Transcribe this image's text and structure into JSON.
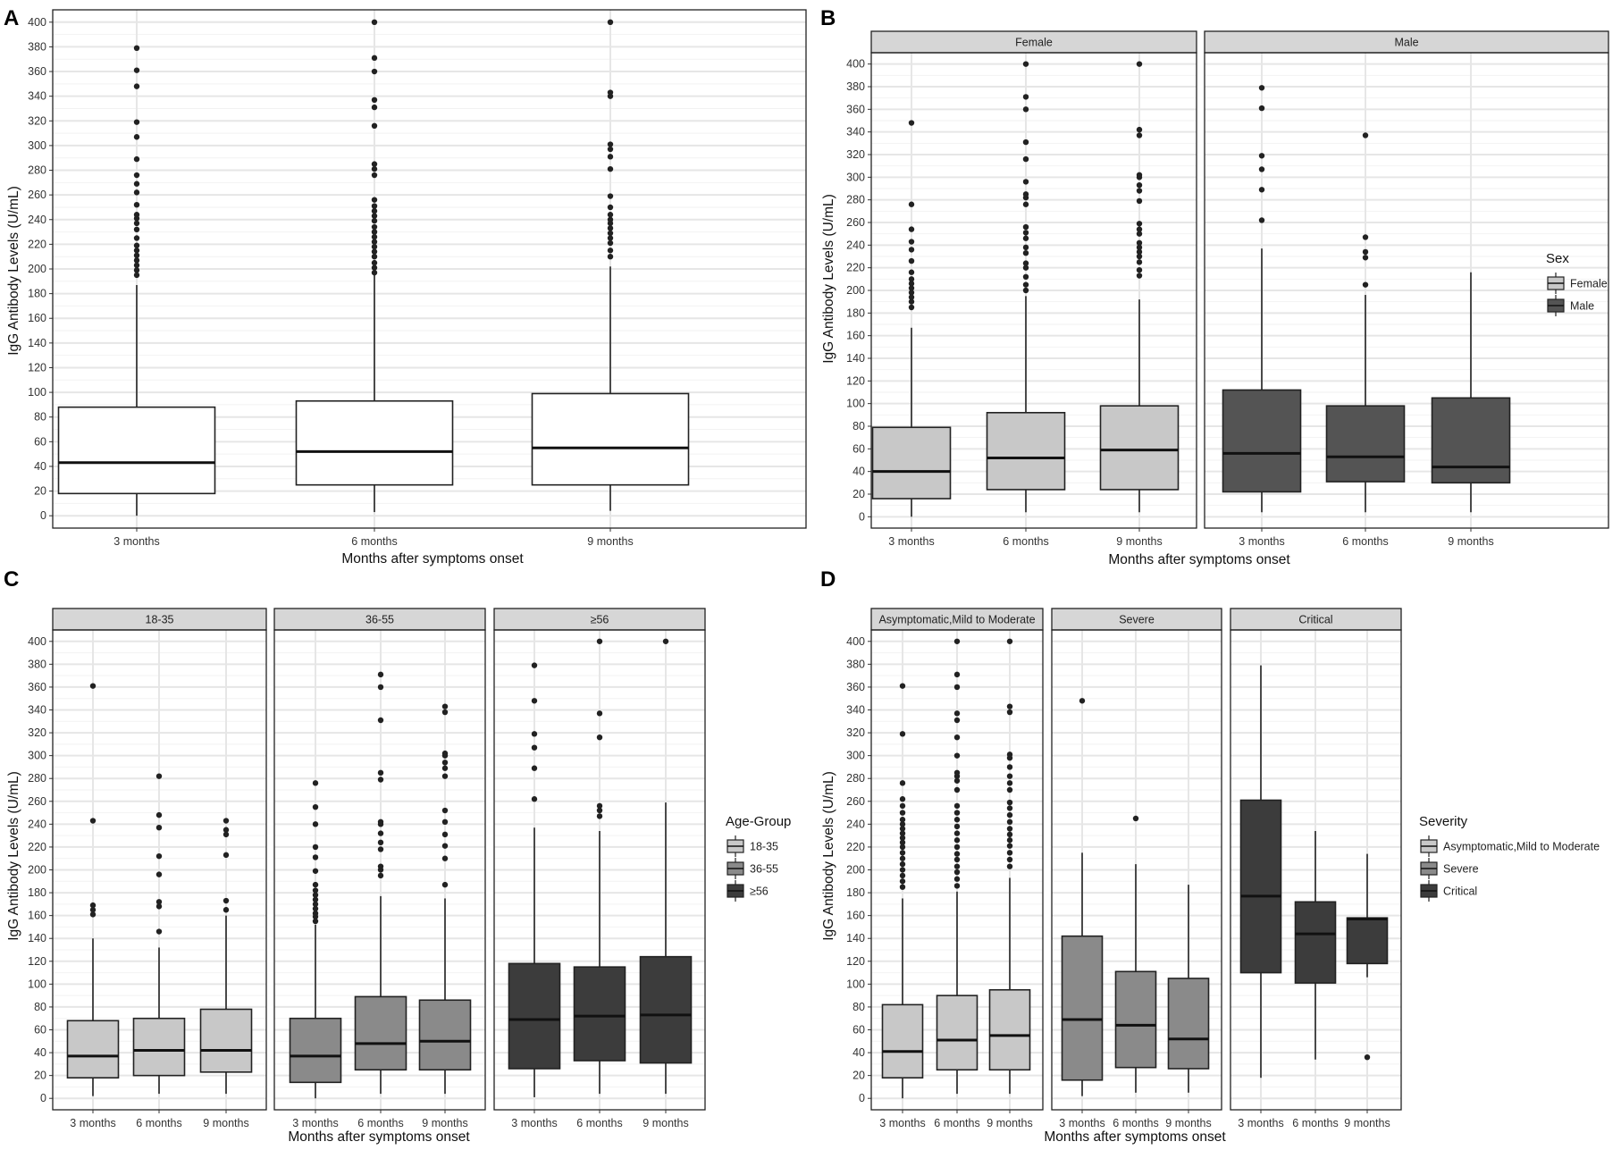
{
  "chart_data": [
    {
      "letter": "A",
      "type": "boxplot",
      "xlabel": "Months after symptoms onset",
      "ylabel": "IgG Antibody Levels (U/mL)",
      "ylim": [
        -10,
        410
      ],
      "yticks": [
        0,
        20,
        40,
        60,
        80,
        100,
        120,
        140,
        160,
        180,
        200,
        220,
        240,
        260,
        280,
        300,
        320,
        340,
        360,
        380,
        400
      ],
      "categories": [
        "3 months",
        "6 months",
        "9 months"
      ],
      "facets": [
        {
          "label": "",
          "boxes": [
            {
              "category": "3 months",
              "group": "",
              "min": 0,
              "q1": 18,
              "median": 43,
              "q3": 88,
              "max": 187,
              "outliers": [
                195,
                199,
                203,
                207,
                211,
                215,
                219,
                225,
                232,
                237,
                241,
                244,
                252,
                262,
                269,
                276,
                289,
                307,
                319,
                348,
                361,
                379
              ]
            },
            {
              "category": "6 months",
              "group": "",
              "min": 3,
              "q1": 25,
              "median": 52,
              "q3": 93,
              "max": 195,
              "outliers": [
                197,
                201,
                205,
                210,
                214,
                218,
                222,
                226,
                230,
                234,
                239,
                243,
                247,
                251,
                256,
                276,
                281,
                285,
                316,
                331,
                337,
                360,
                371,
                400
              ]
            },
            {
              "category": "9 months",
              "group": "",
              "min": 4,
              "q1": 25,
              "median": 55,
              "q3": 99,
              "max": 202,
              "outliers": [
                210,
                215,
                221,
                225,
                229,
                233,
                237,
                240,
                244,
                250,
                259,
                281,
                291,
                297,
                301,
                340,
                343,
                400
              ]
            }
          ]
        }
      ],
      "legend": null
    },
    {
      "letter": "B",
      "type": "boxplot",
      "xlabel": "Months after symptoms onset",
      "ylabel": "IgG Antibody Levels (U/mL)",
      "ylim": [
        -10,
        410
      ],
      "yticks": [
        0,
        20,
        40,
        60,
        80,
        100,
        120,
        140,
        160,
        180,
        200,
        220,
        240,
        260,
        280,
        300,
        320,
        340,
        360,
        380,
        400
      ],
      "categories": [
        "3 months",
        "6 months",
        "9 months"
      ],
      "facets": [
        {
          "label": "Female",
          "boxes": [
            {
              "category": "3 months",
              "group": "Female",
              "min": 0,
              "q1": 16,
              "median": 40,
              "q3": 79,
              "max": 167,
              "outliers": [
                185,
                190,
                194,
                198,
                202,
                206,
                210,
                216,
                226,
                236,
                243,
                254,
                276,
                348
              ]
            },
            {
              "category": "6 months",
              "group": "Female",
              "min": 4,
              "q1": 24,
              "median": 52,
              "q3": 92,
              "max": 195,
              "outliers": [
                200,
                205,
                212,
                220,
                224,
                233,
                238,
                246,
                251,
                256,
                276,
                282,
                285,
                296,
                316,
                331,
                360,
                371,
                400
              ]
            },
            {
              "category": "9 months",
              "group": "Female",
              "min": 4,
              "q1": 24,
              "median": 59,
              "q3": 98,
              "max": 192,
              "outliers": [
                213,
                218,
                225,
                230,
                234,
                238,
                242,
                250,
                254,
                259,
                279,
                288,
                293,
                300,
                302,
                337,
                342,
                400
              ]
            }
          ]
        },
        {
          "label": "Male",
          "boxes": [
            {
              "category": "3 months",
              "group": "Male",
              "min": 4,
              "q1": 22,
              "median": 56,
              "q3": 112,
              "max": 237,
              "outliers": [
                262,
                289,
                307,
                319,
                361,
                379
              ]
            },
            {
              "category": "6 months",
              "group": "Male",
              "min": 4,
              "q1": 31,
              "median": 53,
              "q3": 98,
              "max": 196,
              "outliers": [
                205,
                229,
                234,
                247,
                337
              ]
            },
            {
              "category": "9 months",
              "group": "Male",
              "min": 4,
              "q1": 30,
              "median": 44,
              "q3": 105,
              "max": 216,
              "outliers": []
            }
          ]
        }
      ],
      "legend": {
        "title": "Sex",
        "items": [
          {
            "label": "Female",
            "color": "#c8c8c8"
          },
          {
            "label": "Male",
            "color": "#545454"
          }
        ]
      }
    },
    {
      "letter": "C",
      "type": "boxplot",
      "xlabel": "Months after symptoms onset",
      "ylabel": "IgG Antibody Levels (U/mL)",
      "ylim": [
        -10,
        410
      ],
      "yticks": [
        0,
        20,
        40,
        60,
        80,
        100,
        120,
        140,
        160,
        180,
        200,
        220,
        240,
        260,
        280,
        300,
        320,
        340,
        360,
        380,
        400
      ],
      "categories": [
        "3 months",
        "6 months",
        "9 months"
      ],
      "facets": [
        {
          "label": "18-35",
          "boxes": [
            {
              "category": "3 months",
              "group": "18-35",
              "min": 2,
              "q1": 18,
              "median": 37,
              "q3": 68,
              "max": 140,
              "outliers": [
                161,
                165,
                169,
                243,
                361
              ]
            },
            {
              "category": "6 months",
              "group": "18-35",
              "min": 4,
              "q1": 20,
              "median": 42,
              "q3": 70,
              "max": 132,
              "outliers": [
                146,
                168,
                172,
                196,
                212,
                237,
                248,
                282
              ]
            },
            {
              "category": "9 months",
              "group": "18-35",
              "min": 4,
              "q1": 23,
              "median": 42,
              "q3": 78,
              "max": 160,
              "outliers": [
                165,
                173,
                213,
                231,
                235,
                243
              ]
            }
          ]
        },
        {
          "label": "36-55",
          "boxes": [
            {
              "category": "3 months",
              "group": "36-55",
              "min": 0,
              "q1": 14,
              "median": 37,
              "q3": 70,
              "max": 152,
              "outliers": [
                155,
                159,
                162,
                166,
                170,
                174,
                178,
                182,
                187,
                199,
                211,
                220,
                240,
                255,
                276
              ]
            },
            {
              "category": "6 months",
              "group": "36-55",
              "min": 4,
              "q1": 25,
              "median": 48,
              "q3": 89,
              "max": 177,
              "outliers": [
                195,
                200,
                203,
                218,
                224,
                232,
                240,
                242,
                279,
                285,
                331,
                360,
                371
              ]
            },
            {
              "category": "9 months",
              "group": "36-55",
              "min": 4,
              "q1": 25,
              "median": 50,
              "q3": 86,
              "max": 175,
              "outliers": [
                187,
                210,
                221,
                231,
                242,
                252,
                282,
                289,
                294,
                300,
                302,
                338,
                343
              ]
            }
          ]
        },
        {
          "label": "≥56",
          "boxes": [
            {
              "category": "3 months",
              "group": "≥56",
              "min": 1,
              "q1": 26,
              "median": 69,
              "q3": 118,
              "max": 237,
              "outliers": [
                262,
                289,
                307,
                319,
                348,
                379
              ]
            },
            {
              "category": "6 months",
              "group": "≥56",
              "min": 4,
              "q1": 33,
              "median": 72,
              "q3": 115,
              "max": 234,
              "outliers": [
                247,
                252,
                256,
                316,
                337,
                400
              ]
            },
            {
              "category": "9 months",
              "group": "≥56",
              "min": 4,
              "q1": 31,
              "median": 73,
              "q3": 124,
              "max": 259,
              "outliers": [
                400
              ]
            }
          ]
        }
      ],
      "legend": {
        "title": "Age-Group",
        "items": [
          {
            "label": "18-35",
            "color": "#c8c8c8"
          },
          {
            "label": "36-55",
            "color": "#8a8a8a"
          },
          {
            "label": "≥56",
            "color": "#3c3c3c"
          }
        ]
      }
    },
    {
      "letter": "D",
      "type": "boxplot",
      "xlabel": "Months after symptoms onset",
      "ylabel": "IgG Antibody Levels (U/mL)",
      "ylim": [
        -10,
        410
      ],
      "yticks": [
        0,
        20,
        40,
        60,
        80,
        100,
        120,
        140,
        160,
        180,
        200,
        220,
        240,
        260,
        280,
        300,
        320,
        340,
        360,
        380,
        400
      ],
      "categories": [
        "3 months",
        "6 months",
        "9 months"
      ],
      "facets": [
        {
          "label": "Asymptomatic,Mild to Moderate",
          "boxes": [
            {
              "category": "3 months",
              "group": "Asymptomatic,Mild to Moderate",
              "min": 0,
              "q1": 18,
              "median": 41,
              "q3": 82,
              "max": 175,
              "outliers": [
                185,
                190,
                195,
                200,
                205,
                210,
                215,
                220,
                224,
                228,
                232,
                236,
                240,
                244,
                250,
                256,
                262,
                276,
                319,
                361
              ]
            },
            {
              "category": "6 months",
              "group": "Asymptomatic,Mild to Moderate",
              "min": 4,
              "q1": 25,
              "median": 51,
              "q3": 90,
              "max": 181,
              "outliers": [
                186,
                192,
                198,
                203,
                209,
                214,
                220,
                226,
                232,
                238,
                244,
                250,
                256,
                270,
                278,
                282,
                285,
                300,
                316,
                331,
                337,
                360,
                371,
                400
              ]
            },
            {
              "category": "9 months",
              "group": "Asymptomatic,Mild to Moderate",
              "min": 4,
              "q1": 25,
              "median": 55,
              "q3": 95,
              "max": 193,
              "outliers": [
                203,
                209,
                215,
                221,
                226,
                231,
                236,
                242,
                248,
                254,
                259,
                270,
                276,
                282,
                290,
                298,
                301,
                338,
                343,
                400
              ]
            }
          ]
        },
        {
          "label": "Severe",
          "boxes": [
            {
              "category": "3 months",
              "group": "Severe",
              "min": 2,
              "q1": 16,
              "median": 69,
              "q3": 142,
              "max": 215,
              "outliers": [
                348
              ]
            },
            {
              "category": "6 months",
              "group": "Severe",
              "min": 5,
              "q1": 27,
              "median": 64,
              "q3": 111,
              "max": 205,
              "outliers": [
                245
              ]
            },
            {
              "category": "9 months",
              "group": "Severe",
              "min": 5,
              "q1": 26,
              "median": 52,
              "q3": 105,
              "max": 187,
              "outliers": []
            }
          ]
        },
        {
          "label": "Critical",
          "boxes": [
            {
              "category": "3 months",
              "group": "Critical",
              "min": 18,
              "q1": 110,
              "median": 177,
              "q3": 261,
              "max": 379,
              "outliers": []
            },
            {
              "category": "6 months",
              "group": "Critical",
              "min": 34,
              "q1": 101,
              "median": 144,
              "q3": 172,
              "max": 234,
              "outliers": []
            },
            {
              "category": "9 months",
              "group": "Critical",
              "min": 106,
              "q1": 118,
              "median": 157,
              "q3": 158,
              "max": 214,
              "outliers": [
                36
              ]
            }
          ]
        }
      ],
      "legend": {
        "title": "Severity",
        "items": [
          {
            "label": "Asymptomatic,Mild to Moderate",
            "color": "#c8c8c8"
          },
          {
            "label": "Severe",
            "color": "#8a8a8a"
          },
          {
            "label": "Critical",
            "color": "#3c3c3c"
          }
        ]
      }
    }
  ]
}
